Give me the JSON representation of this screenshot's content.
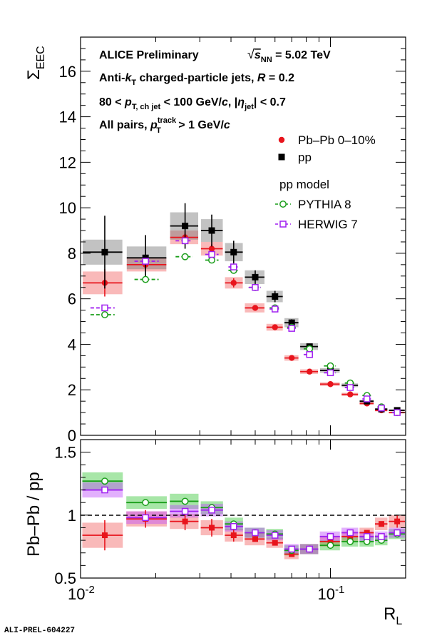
{
  "chart_data": [
    {
      "type": "scatter",
      "panel": "top",
      "ylabel": "Σ_EEC",
      "xlabel": "",
      "xscale": "log",
      "xlim": [
        0.01,
        0.2
      ],
      "ylim": [
        0,
        17.5
      ],
      "yticks": [
        0,
        2,
        4,
        6,
        8,
        10,
        12,
        14,
        16
      ],
      "annotations": [
        "ALICE Preliminary",
        "√s_NN = 5.02 TeV",
        "Anti-k_T charged-particle jets, R = 0.2",
        "80 < p_T, ch jet < 100 GeV/c, |η_jet| < 0.7",
        "All pairs, p_T^track > 1 GeV/c"
      ],
      "legend_title": "pp model",
      "legend_position": "top-right",
      "bin_edges": [
        0.01,
        0.015,
        0.0225,
        0.03,
        0.0375,
        0.045,
        0.055,
        0.065,
        0.075,
        0.09,
        0.11,
        0.13,
        0.15,
        0.17,
        0.2
      ],
      "bin_centers": [
        0.0125,
        0.0182,
        0.0262,
        0.0335,
        0.041,
        0.05,
        0.06,
        0.07,
        0.0825,
        0.1,
        0.12,
        0.14,
        0.16,
        0.185
      ],
      "series": [
        {
          "name": "Pb–Pb 0–10%",
          "color": "#e8141c",
          "marker": "filled-circle",
          "values": [
            6.7,
            7.5,
            8.7,
            8.2,
            6.7,
            5.6,
            4.75,
            3.4,
            2.8,
            2.25,
            1.8,
            1.4,
            1.1,
            1.0
          ],
          "stat_err": [
            0.6,
            0.2,
            0.2,
            0.2,
            0.2,
            0.1,
            0.1,
            0.1,
            0.1,
            0.1,
            0.05,
            0.05,
            0.05,
            0.05
          ],
          "sys_err": [
            0.5,
            0.3,
            0.3,
            0.3,
            0.25,
            0.2,
            0.15,
            0.12,
            0.1,
            0.08,
            0.07,
            0.06,
            0.05,
            0.04
          ]
        },
        {
          "name": "pp",
          "color": "#000000",
          "marker": "filled-square",
          "values": [
            8.05,
            7.8,
            9.2,
            9.0,
            8.05,
            6.95,
            6.1,
            4.95,
            3.9,
            2.85,
            2.2,
            1.5,
            1.15,
            1.1
          ],
          "stat_err": [
            1.6,
            1.0,
            1.0,
            0.7,
            0.5,
            0.3,
            0.25,
            0.15,
            0.1,
            0.05,
            0.05,
            0.05,
            0.05,
            0.05
          ],
          "sys_err": [
            0.55,
            0.5,
            0.6,
            0.5,
            0.4,
            0.3,
            0.25,
            0.2,
            0.15,
            0.1,
            0.08,
            0.06,
            0.05,
            0.04
          ]
        },
        {
          "name": "PYTHIA 8",
          "color": "#1a9e1a",
          "marker": "open-circle",
          "line": "dashed",
          "group": "pp model",
          "values": [
            5.3,
            6.85,
            7.85,
            7.7,
            7.25,
            6.5,
            5.6,
            4.75,
            3.8,
            3.05,
            2.3,
            1.75,
            1.25,
            1.0
          ],
          "stat_err": [
            0.1,
            0.1,
            0.05,
            0.05,
            0.05,
            0.05,
            0.05,
            0.05,
            0.05,
            0.05,
            0.05,
            0.05,
            0.05,
            0.05
          ]
        },
        {
          "name": "HERWIG 7",
          "color": "#a020f0",
          "marker": "open-square",
          "line": "dashed",
          "group": "pp model",
          "values": [
            5.6,
            7.65,
            8.55,
            7.95,
            7.4,
            6.5,
            5.55,
            4.7,
            3.55,
            2.75,
            2.1,
            1.6,
            1.2,
            1.0
          ],
          "stat_err": [
            0.1,
            0.1,
            0.1,
            0.05,
            0.05,
            0.05,
            0.05,
            0.05,
            0.05,
            0.05,
            0.05,
            0.05,
            0.05,
            0.05
          ]
        }
      ]
    },
    {
      "type": "scatter",
      "panel": "ratio",
      "ylabel": "Pb–Pb / pp",
      "xlabel": "R_L",
      "xscale": "log",
      "xlim": [
        0.01,
        0.2
      ],
      "ylim": [
        0.5,
        1.6
      ],
      "yticks": [
        0.5,
        1,
        1.5
      ],
      "xticks": [
        0.01,
        0.1
      ],
      "xtick_labels": [
        "10^-2",
        "10^-1"
      ],
      "reference_line": 1.0,
      "series": [
        {
          "name": "Pb–Pb 0–10%",
          "color": "#e8141c",
          "marker": "plus",
          "values": [
            0.84,
            0.97,
            0.95,
            0.9,
            0.84,
            0.81,
            0.78,
            0.69,
            0.73,
            0.79,
            0.83,
            0.86,
            0.93,
            0.95
          ],
          "stat_err": [
            0.12,
            0.07,
            0.07,
            0.07,
            0.05,
            0.04,
            0.03,
            0.03,
            0.03,
            0.03,
            0.03,
            0.03,
            0.04,
            0.05
          ],
          "sys_err": [
            0.1,
            0.06,
            0.06,
            0.06,
            0.05,
            0.05,
            0.04,
            0.04,
            0.04,
            0.04,
            0.04,
            0.04,
            0.05,
            0.05
          ]
        },
        {
          "name": "PYTHIA 8",
          "color": "#1a9e1a",
          "marker": "open-circle",
          "values": [
            1.27,
            1.1,
            1.11,
            1.06,
            0.93,
            0.86,
            0.85,
            0.72,
            0.73,
            0.76,
            0.79,
            0.79,
            0.8,
            0.85
          ],
          "stat_err": [
            0.03,
            0.03,
            0.03,
            0.02,
            0.02,
            0.02,
            0.02,
            0.02,
            0.02,
            0.02,
            0.02,
            0.02,
            0.02,
            0.02
          ],
          "sys_err": [
            0.07,
            0.05,
            0.06,
            0.05,
            0.05,
            0.04,
            0.04,
            0.04,
            0.04,
            0.04,
            0.04,
            0.04,
            0.04,
            0.04
          ]
        },
        {
          "name": "HERWIG 7",
          "color": "#a020f0",
          "marker": "open-square",
          "values": [
            1.2,
            0.98,
            1.03,
            1.04,
            0.91,
            0.86,
            0.84,
            0.73,
            0.73,
            0.83,
            0.86,
            0.83,
            0.83,
            0.86
          ],
          "stat_err": [
            0.03,
            0.03,
            0.03,
            0.02,
            0.02,
            0.02,
            0.02,
            0.02,
            0.02,
            0.02,
            0.02,
            0.02,
            0.02,
            0.02
          ],
          "sys_err": [
            0.06,
            0.05,
            0.05,
            0.05,
            0.04,
            0.04,
            0.04,
            0.04,
            0.04,
            0.04,
            0.04,
            0.04,
            0.04,
            0.04
          ]
        }
      ]
    }
  ],
  "watermark": "ALI-PREL-604227"
}
